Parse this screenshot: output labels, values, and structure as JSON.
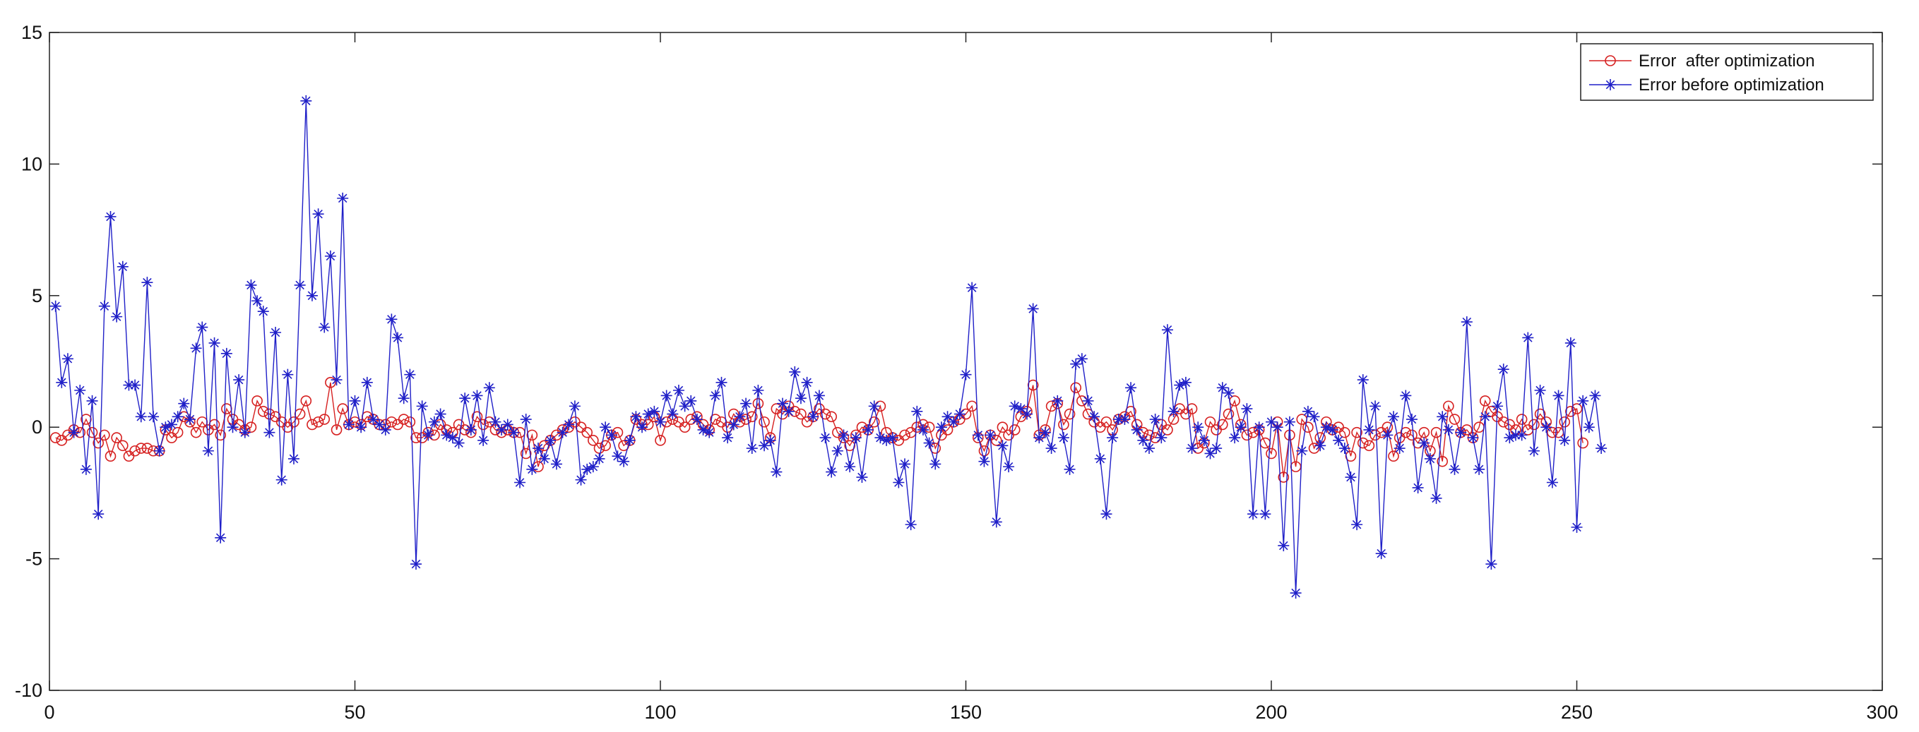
{
  "chart_data": {
    "type": "line",
    "title": "",
    "xlabel": "",
    "ylabel": "",
    "xlim": [
      0,
      300
    ],
    "ylim": [
      -10,
      15
    ],
    "xticks": [
      0,
      50,
      100,
      150,
      200,
      250,
      300
    ],
    "yticks": [
      -10,
      -5,
      0,
      5,
      10,
      15
    ],
    "grid": false,
    "legend_position": "top-right",
    "series": [
      {
        "name": "Error  after optimization",
        "color": "#d62020",
        "marker": "circle",
        "x_start": 1,
        "values": [
          -0.4,
          -0.5,
          -0.3,
          -0.1,
          -0.2,
          0.3,
          -0.2,
          -0.6,
          -0.3,
          -1.1,
          -0.4,
          -0.7,
          -1.1,
          -0.9,
          -0.8,
          -0.8,
          -0.9,
          -0.9,
          -0.1,
          -0.4,
          -0.2,
          0.4,
          0.2,
          -0.2,
          0.2,
          -0.1,
          0.1,
          -0.3,
          0.7,
          0.3,
          0.1,
          -0.1,
          0.0,
          1.0,
          0.6,
          0.5,
          0.4,
          0.2,
          0.0,
          0.2,
          0.5,
          1.0,
          0.1,
          0.2,
          0.3,
          1.7,
          -0.1,
          0.7,
          0.1,
          0.2,
          0.1,
          0.4,
          0.3,
          0.1,
          0.1,
          0.2,
          0.1,
          0.3,
          0.2,
          -0.4,
          -0.4,
          -0.2,
          -0.3,
          0.1,
          -0.1,
          -0.2,
          0.1,
          -0.1,
          -0.2,
          0.4,
          0.1,
          0.2,
          -0.1,
          -0.2,
          -0.1,
          -0.2,
          -0.2,
          -1.0,
          -0.3,
          -1.5,
          -0.7,
          -0.5,
          -0.3,
          -0.1,
          0.0,
          0.2,
          0.0,
          -0.2,
          -0.5,
          -0.8,
          -0.7,
          -0.3,
          -0.2,
          -0.7,
          -0.5,
          0.3,
          0.1,
          0.1,
          0.4,
          -0.5,
          0.2,
          0.3,
          0.2,
          0.0,
          0.3,
          0.4,
          0.1,
          -0.1,
          0.3,
          0.2,
          0.0,
          0.5,
          0.2,
          0.3,
          0.4,
          0.9,
          0.2,
          -0.4,
          0.7,
          0.5,
          0.8,
          0.6,
          0.5,
          0.2,
          0.4,
          0.7,
          0.5,
          0.4,
          -0.2,
          -0.4,
          -0.7,
          -0.3,
          0.0,
          -0.1,
          0.2,
          0.8,
          -0.2,
          -0.4,
          -0.5,
          -0.3,
          -0.2,
          0.0,
          0.1,
          0.0,
          -0.8,
          -0.3,
          -0.1,
          0.2,
          0.3,
          0.5,
          0.8,
          -0.4,
          -0.9,
          -0.3,
          -0.5,
          0.0,
          -0.3,
          -0.1,
          0.4,
          0.6,
          1.6,
          -0.3,
          -0.1,
          0.8,
          0.9,
          0.1,
          0.5,
          1.5,
          1.0,
          0.5,
          0.2,
          0.0,
          0.2,
          -0.1,
          0.3,
          0.4,
          0.6,
          0.1,
          -0.2,
          -0.3,
          -0.4,
          0.1,
          -0.1,
          0.3,
          0.7,
          0.5,
          0.7,
          -0.8,
          -0.6,
          0.2,
          -0.1,
          0.1,
          0.5,
          1.0,
          0.1,
          -0.3,
          -0.2,
          -0.1,
          -0.6,
          -1.0,
          0.2,
          -1.9,
          -0.3,
          -1.5,
          0.3,
          0.0,
          -0.8,
          -0.4,
          0.2,
          -0.1,
          0.0,
          -0.2,
          -1.1,
          -0.2,
          -0.6,
          -0.7,
          -0.3,
          -0.2,
          0.0,
          -1.1,
          -0.4,
          -0.2,
          -0.3,
          -0.6,
          -0.2,
          -0.9,
          -0.2,
          -1.3,
          0.8,
          0.3,
          -0.2,
          -0.1,
          -0.4,
          0.0,
          1.0,
          0.6,
          0.4,
          0.2,
          0.1,
          -0.1,
          0.3,
          -0.1,
          0.1,
          0.5,
          0.2,
          -0.2,
          -0.2,
          0.2,
          0.6,
          0.7,
          -0.6
        ]
      },
      {
        "name": "Error before optimization",
        "color": "#2020c8",
        "marker": "asterisk",
        "x_start": 1,
        "values": [
          4.6,
          1.7,
          2.6,
          -0.2,
          1.4,
          -1.6,
          1.0,
          -3.3,
          4.6,
          8.0,
          4.2,
          6.1,
          1.6,
          1.6,
          0.4,
          5.5,
          0.4,
          -0.9,
          0.0,
          0.1,
          0.4,
          0.9,
          0.3,
          3.0,
          3.8,
          -0.9,
          3.2,
          -4.2,
          2.8,
          0.0,
          1.8,
          -0.2,
          5.4,
          4.8,
          4.4,
          -0.2,
          3.6,
          -2.0,
          2.0,
          -1.2,
          5.4,
          12.4,
          5.0,
          8.1,
          3.8,
          6.5,
          1.8,
          8.7,
          0.1,
          1.0,
          0.0,
          1.7,
          0.3,
          0.1,
          -0.1,
          4.1,
          3.4,
          1.1,
          2.0,
          -5.2,
          0.8,
          -0.3,
          0.2,
          0.5,
          -0.3,
          -0.4,
          -0.6,
          1.1,
          -0.1,
          1.2,
          -0.5,
          1.5,
          0.2,
          -0.1,
          0.1,
          -0.2,
          -2.1,
          0.3,
          -1.6,
          -0.8,
          -1.2,
          -0.5,
          -1.4,
          -0.2,
          0.1,
          0.8,
          -2.0,
          -1.6,
          -1.5,
          -1.2,
          0.0,
          -0.3,
          -1.1,
          -1.3,
          -0.5,
          0.4,
          0.0,
          0.5,
          0.6,
          0.2,
          1.2,
          0.5,
          1.4,
          0.8,
          1.0,
          0.3,
          -0.1,
          -0.2,
          1.2,
          1.7,
          -0.4,
          0.1,
          0.4,
          0.9,
          -0.8,
          1.4,
          -0.7,
          -0.5,
          -1.7,
          0.9,
          0.6,
          2.1,
          1.1,
          1.7,
          0.4,
          1.2,
          -0.4,
          -1.7,
          -0.9,
          -0.3,
          -1.5,
          -0.4,
          -1.9,
          -0.1,
          0.8,
          -0.4,
          -0.5,
          -0.4,
          -2.1,
          -1.4,
          -3.7,
          0.6,
          -0.1,
          -0.6,
          -1.4,
          0.0,
          0.4,
          0.2,
          0.5,
          2.0,
          5.3,
          -0.3,
          -1.3,
          -0.3,
          -3.6,
          -0.7,
          -1.5,
          0.8,
          0.7,
          0.5,
          4.5,
          -0.4,
          -0.2,
          -0.8,
          1.0,
          -0.4,
          -1.6,
          2.4,
          2.6,
          1.0,
          0.4,
          -1.2,
          -3.3,
          -0.4,
          0.3,
          0.3,
          1.5,
          -0.1,
          -0.5,
          -0.8,
          0.3,
          -0.4,
          3.7,
          0.6,
          1.6,
          1.7,
          -0.8,
          0.0,
          -0.5,
          -1.0,
          -0.8,
          1.5,
          1.3,
          -0.4,
          0.0,
          0.7,
          -3.3,
          0.0,
          -3.3,
          0.2,
          0.0,
          -4.5,
          0.2,
          -6.3,
          -0.9,
          0.6,
          0.4,
          -0.7,
          0.0,
          -0.1,
          -0.5,
          -0.8,
          -1.9,
          -3.7,
          1.8,
          -0.1,
          0.8,
          -4.8,
          -0.3,
          0.4,
          -0.8,
          1.2,
          0.3,
          -2.3,
          -0.6,
          -1.2,
          -2.7,
          0.4,
          -0.1,
          -1.6,
          -0.2,
          4.0,
          -0.4,
          -1.6,
          0.4,
          -5.2,
          0.8,
          2.2,
          -0.4,
          -0.3,
          -0.3,
          3.4,
          -0.9,
          1.4,
          0.0,
          -2.1,
          1.2,
          -0.5,
          3.2,
          -3.8,
          1.0,
          0.0,
          1.2,
          -0.8
        ]
      }
    ]
  }
}
